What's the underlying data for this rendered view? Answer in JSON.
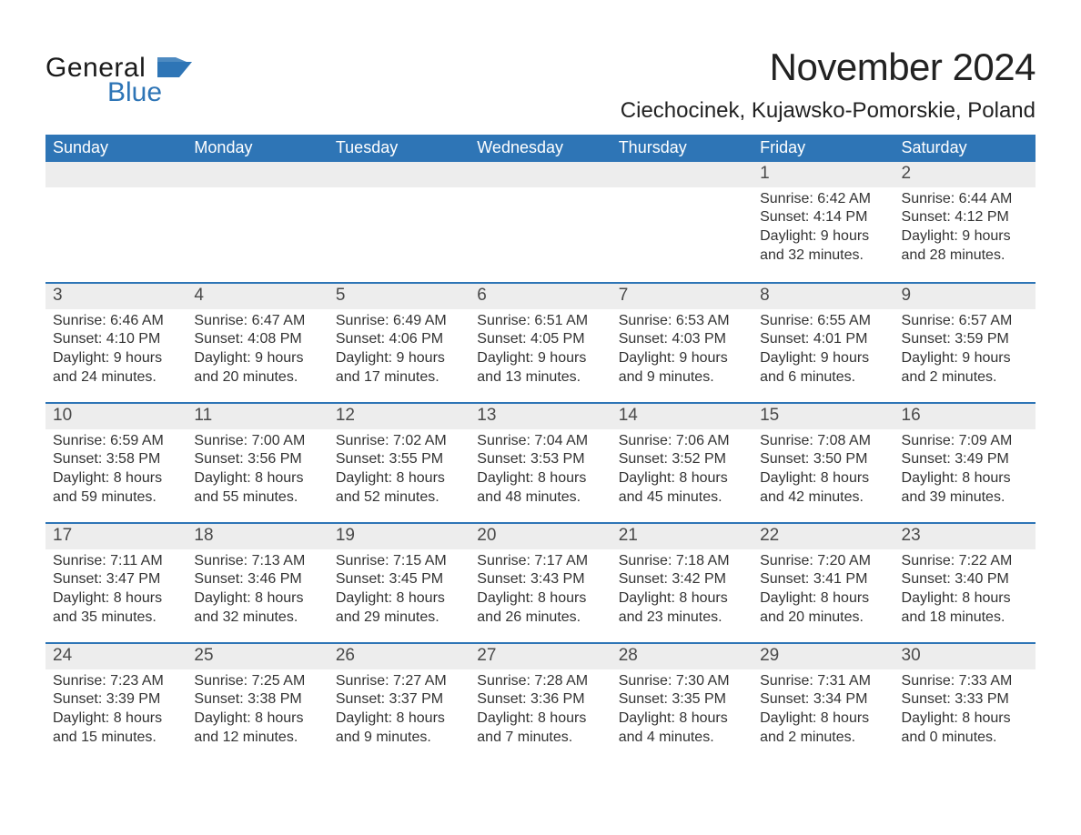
{
  "logo": {
    "word1": "General",
    "word2": "Blue"
  },
  "title": "November 2024",
  "location": "Ciechocinek, Kujawsko-Pomorskie, Poland",
  "colors": {
    "header_bg": "#2e75b6",
    "header_text": "#ffffff",
    "row_separator": "#2e75b6",
    "daynum_bg": "#ededed",
    "daynum_text": "#4a4a4a",
    "body_text": "#333333",
    "page_bg": "#ffffff",
    "logo_blue": "#2e75b6"
  },
  "weekdays": [
    "Sunday",
    "Monday",
    "Tuesday",
    "Wednesday",
    "Thursday",
    "Friday",
    "Saturday"
  ],
  "weeks": [
    [
      {
        "empty": true
      },
      {
        "empty": true
      },
      {
        "empty": true
      },
      {
        "empty": true
      },
      {
        "empty": true
      },
      {
        "day": "1",
        "sunrise": "Sunrise: 6:42 AM",
        "sunset": "Sunset: 4:14 PM",
        "daylight1": "Daylight: 9 hours",
        "daylight2": "and 32 minutes."
      },
      {
        "day": "2",
        "sunrise": "Sunrise: 6:44 AM",
        "sunset": "Sunset: 4:12 PM",
        "daylight1": "Daylight: 9 hours",
        "daylight2": "and 28 minutes."
      }
    ],
    [
      {
        "day": "3",
        "sunrise": "Sunrise: 6:46 AM",
        "sunset": "Sunset: 4:10 PM",
        "daylight1": "Daylight: 9 hours",
        "daylight2": "and 24 minutes."
      },
      {
        "day": "4",
        "sunrise": "Sunrise: 6:47 AM",
        "sunset": "Sunset: 4:08 PM",
        "daylight1": "Daylight: 9 hours",
        "daylight2": "and 20 minutes."
      },
      {
        "day": "5",
        "sunrise": "Sunrise: 6:49 AM",
        "sunset": "Sunset: 4:06 PM",
        "daylight1": "Daylight: 9 hours",
        "daylight2": "and 17 minutes."
      },
      {
        "day": "6",
        "sunrise": "Sunrise: 6:51 AM",
        "sunset": "Sunset: 4:05 PM",
        "daylight1": "Daylight: 9 hours",
        "daylight2": "and 13 minutes."
      },
      {
        "day": "7",
        "sunrise": "Sunrise: 6:53 AM",
        "sunset": "Sunset: 4:03 PM",
        "daylight1": "Daylight: 9 hours",
        "daylight2": "and 9 minutes."
      },
      {
        "day": "8",
        "sunrise": "Sunrise: 6:55 AM",
        "sunset": "Sunset: 4:01 PM",
        "daylight1": "Daylight: 9 hours",
        "daylight2": "and 6 minutes."
      },
      {
        "day": "9",
        "sunrise": "Sunrise: 6:57 AM",
        "sunset": "Sunset: 3:59 PM",
        "daylight1": "Daylight: 9 hours",
        "daylight2": "and 2 minutes."
      }
    ],
    [
      {
        "day": "10",
        "sunrise": "Sunrise: 6:59 AM",
        "sunset": "Sunset: 3:58 PM",
        "daylight1": "Daylight: 8 hours",
        "daylight2": "and 59 minutes."
      },
      {
        "day": "11",
        "sunrise": "Sunrise: 7:00 AM",
        "sunset": "Sunset: 3:56 PM",
        "daylight1": "Daylight: 8 hours",
        "daylight2": "and 55 minutes."
      },
      {
        "day": "12",
        "sunrise": "Sunrise: 7:02 AM",
        "sunset": "Sunset: 3:55 PM",
        "daylight1": "Daylight: 8 hours",
        "daylight2": "and 52 minutes."
      },
      {
        "day": "13",
        "sunrise": "Sunrise: 7:04 AM",
        "sunset": "Sunset: 3:53 PM",
        "daylight1": "Daylight: 8 hours",
        "daylight2": "and 48 minutes."
      },
      {
        "day": "14",
        "sunrise": "Sunrise: 7:06 AM",
        "sunset": "Sunset: 3:52 PM",
        "daylight1": "Daylight: 8 hours",
        "daylight2": "and 45 minutes."
      },
      {
        "day": "15",
        "sunrise": "Sunrise: 7:08 AM",
        "sunset": "Sunset: 3:50 PM",
        "daylight1": "Daylight: 8 hours",
        "daylight2": "and 42 minutes."
      },
      {
        "day": "16",
        "sunrise": "Sunrise: 7:09 AM",
        "sunset": "Sunset: 3:49 PM",
        "daylight1": "Daylight: 8 hours",
        "daylight2": "and 39 minutes."
      }
    ],
    [
      {
        "day": "17",
        "sunrise": "Sunrise: 7:11 AM",
        "sunset": "Sunset: 3:47 PM",
        "daylight1": "Daylight: 8 hours",
        "daylight2": "and 35 minutes."
      },
      {
        "day": "18",
        "sunrise": "Sunrise: 7:13 AM",
        "sunset": "Sunset: 3:46 PM",
        "daylight1": "Daylight: 8 hours",
        "daylight2": "and 32 minutes."
      },
      {
        "day": "19",
        "sunrise": "Sunrise: 7:15 AM",
        "sunset": "Sunset: 3:45 PM",
        "daylight1": "Daylight: 8 hours",
        "daylight2": "and 29 minutes."
      },
      {
        "day": "20",
        "sunrise": "Sunrise: 7:17 AM",
        "sunset": "Sunset: 3:43 PM",
        "daylight1": "Daylight: 8 hours",
        "daylight2": "and 26 minutes."
      },
      {
        "day": "21",
        "sunrise": "Sunrise: 7:18 AM",
        "sunset": "Sunset: 3:42 PM",
        "daylight1": "Daylight: 8 hours",
        "daylight2": "and 23 minutes."
      },
      {
        "day": "22",
        "sunrise": "Sunrise: 7:20 AM",
        "sunset": "Sunset: 3:41 PM",
        "daylight1": "Daylight: 8 hours",
        "daylight2": "and 20 minutes."
      },
      {
        "day": "23",
        "sunrise": "Sunrise: 7:22 AM",
        "sunset": "Sunset: 3:40 PM",
        "daylight1": "Daylight: 8 hours",
        "daylight2": "and 18 minutes."
      }
    ],
    [
      {
        "day": "24",
        "sunrise": "Sunrise: 7:23 AM",
        "sunset": "Sunset: 3:39 PM",
        "daylight1": "Daylight: 8 hours",
        "daylight2": "and 15 minutes."
      },
      {
        "day": "25",
        "sunrise": "Sunrise: 7:25 AM",
        "sunset": "Sunset: 3:38 PM",
        "daylight1": "Daylight: 8 hours",
        "daylight2": "and 12 minutes."
      },
      {
        "day": "26",
        "sunrise": "Sunrise: 7:27 AM",
        "sunset": "Sunset: 3:37 PM",
        "daylight1": "Daylight: 8 hours",
        "daylight2": "and 9 minutes."
      },
      {
        "day": "27",
        "sunrise": "Sunrise: 7:28 AM",
        "sunset": "Sunset: 3:36 PM",
        "daylight1": "Daylight: 8 hours",
        "daylight2": "and 7 minutes."
      },
      {
        "day": "28",
        "sunrise": "Sunrise: 7:30 AM",
        "sunset": "Sunset: 3:35 PM",
        "daylight1": "Daylight: 8 hours",
        "daylight2": "and 4 minutes."
      },
      {
        "day": "29",
        "sunrise": "Sunrise: 7:31 AM",
        "sunset": "Sunset: 3:34 PM",
        "daylight1": "Daylight: 8 hours",
        "daylight2": "and 2 minutes."
      },
      {
        "day": "30",
        "sunrise": "Sunrise: 7:33 AM",
        "sunset": "Sunset: 3:33 PM",
        "daylight1": "Daylight: 8 hours",
        "daylight2": "and 0 minutes."
      }
    ]
  ]
}
